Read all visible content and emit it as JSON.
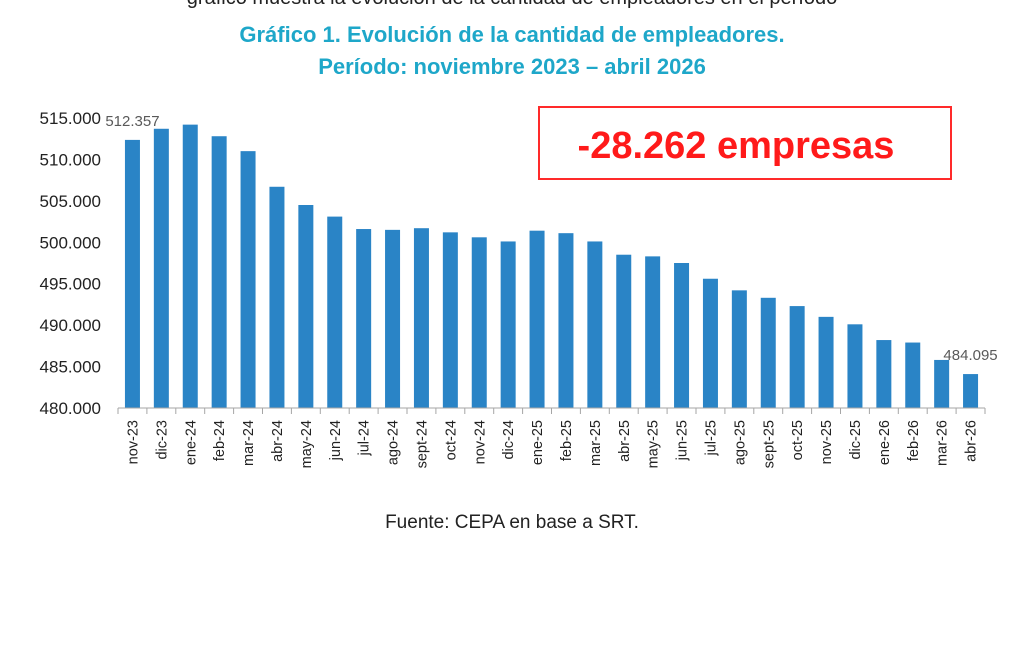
{
  "header_fragment": "gráfico muestra la evolución de la cantidad de empleadores en el período",
  "chart_data": {
    "type": "bar",
    "title_line1": "Gráfico 1. Evolución de la cantidad de empleadores.",
    "title_line2": "Período: noviembre 2023 – abril 2026",
    "xlabel": "",
    "ylabel": "",
    "ylim": [
      480000,
      515000
    ],
    "yticks": [
      480000,
      485000,
      490000,
      495000,
      500000,
      505000,
      510000,
      515000
    ],
    "ytick_labels": [
      "480.000",
      "485.000",
      "490.000",
      "495.000",
      "500.000",
      "505.000",
      "510.000",
      "515.000"
    ],
    "categories": [
      "nov-23",
      "dic-23",
      "ene-24",
      "feb-24",
      "mar-24",
      "abr-24",
      "may-24",
      "jun-24",
      "jul-24",
      "ago-24",
      "sept-24",
      "oct-24",
      "nov-24",
      "dic-24",
      "ene-25",
      "feb-25",
      "mar-25",
      "abr-25",
      "may-25",
      "jun-25",
      "jul-25",
      "ago-25",
      "sept-25",
      "oct-25",
      "nov-25",
      "dic-25",
      "ene-26",
      "feb-26",
      "mar-26",
      "abr-26"
    ],
    "values": [
      512357,
      513700,
      514200,
      512800,
      511000,
      506700,
      504500,
      503100,
      501600,
      501500,
      501700,
      501200,
      500600,
      500100,
      501400,
      501100,
      500100,
      498500,
      498300,
      497500,
      495600,
      494200,
      493300,
      492300,
      491000,
      490100,
      488200,
      487900,
      485800,
      484095
    ],
    "data_labels": [
      {
        "index": 0,
        "text": "512.357"
      },
      {
        "index": 29,
        "text": "484.095"
      }
    ],
    "annotation": {
      "text": "-28.262 empresas",
      "text_color": "#ff1a1a",
      "border_color": "#ff2a2a"
    },
    "bar_color": "#2a84c6",
    "grid": false,
    "legend": "none"
  },
  "source": "Fuente: CEPA en base a SRT."
}
